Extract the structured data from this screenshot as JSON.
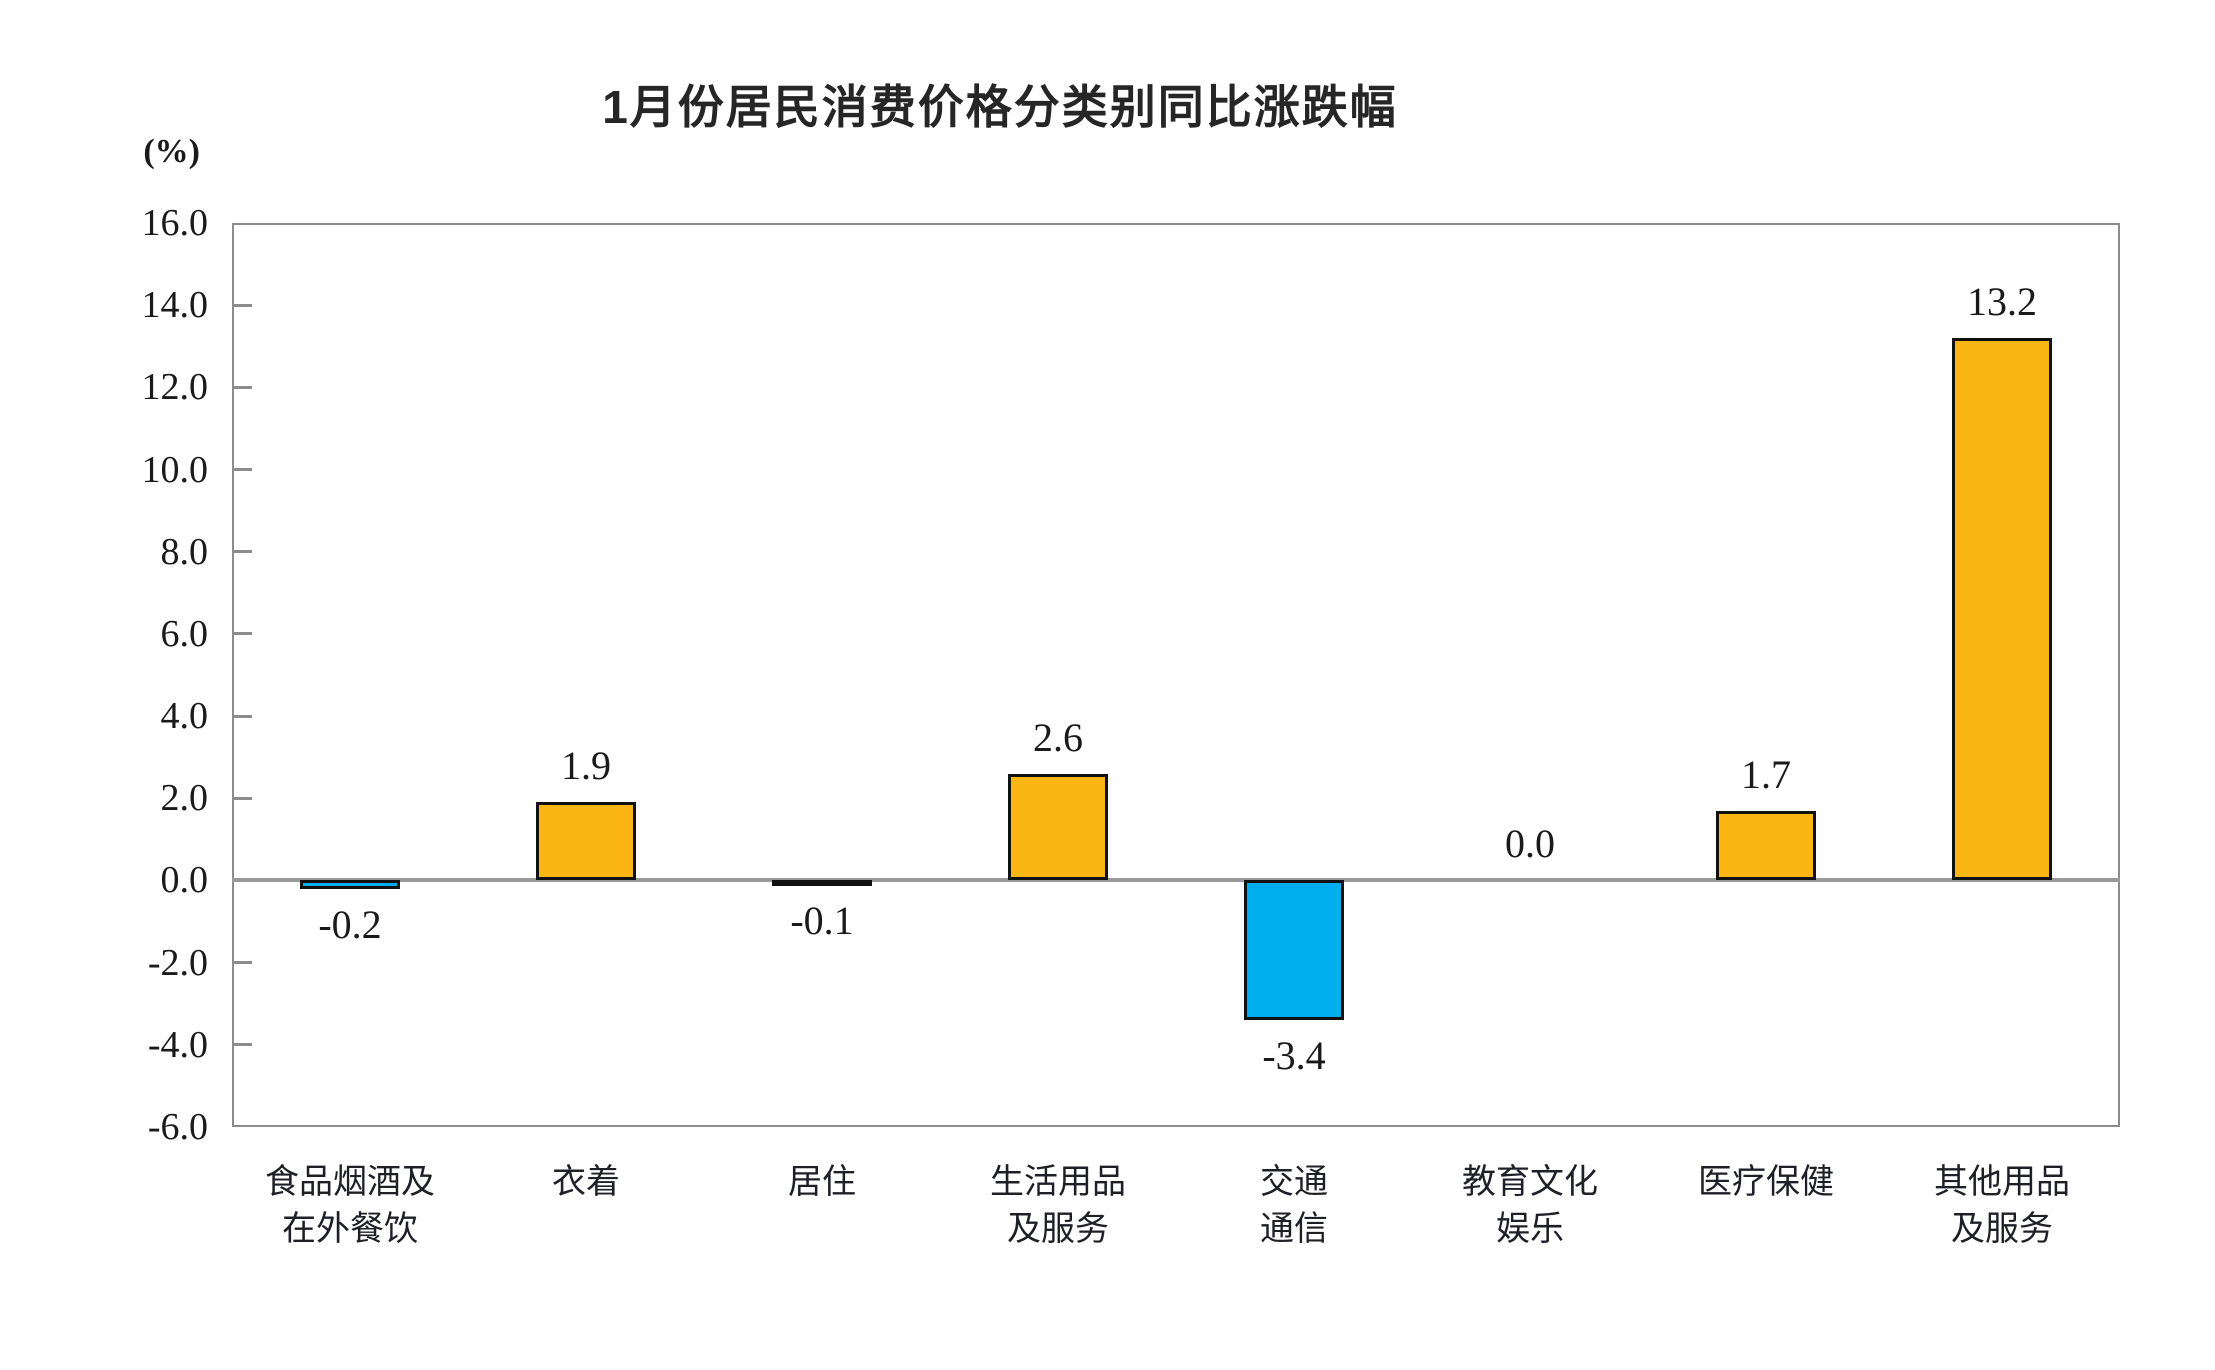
{
  "page": {
    "background": "#ffffff"
  },
  "chart_data": {
    "type": "bar",
    "title": "1月份居民消费价格分类别同比涨跌幅",
    "unit_label": "(%)",
    "categories": [
      "食品烟酒及\n在外餐饮",
      "衣着",
      "居住",
      "生活用品\n及服务",
      "交通\n通信",
      "教育文化\n娱乐",
      "医疗保健",
      "其他用品\n及服务"
    ],
    "values": [
      -0.2,
      1.9,
      -0.1,
      2.6,
      -3.4,
      0.0,
      1.7,
      13.2
    ],
    "value_labels": [
      "-0.2",
      "1.9",
      "-0.1",
      "2.6",
      "-3.4",
      "0.0",
      "1.7",
      "13.2"
    ],
    "bar_colors": [
      "#00AEEF",
      "#FBB615",
      "#00AEEF",
      "#FBB615",
      "#00AEEF",
      "#FBB615",
      "#FBB615",
      "#FBB615"
    ],
    "ylim": [
      -6.0,
      16.0
    ],
    "ytick_step": 2.0,
    "ytick_labels": [
      "16.0",
      "14.0",
      "12.0",
      "10.0",
      "8.0",
      "6.0",
      "4.0",
      "2.0",
      "0.0",
      "-2.0",
      "-4.0",
      "-6.0"
    ],
    "xlabel": "",
    "ylabel": "(%)",
    "grid": false,
    "legend": "none",
    "colors": {
      "positive_bar": "#FBB615",
      "negative_bar": "#00AEEF",
      "bar_border": "#111111",
      "axis_frame": "#8C8C8C",
      "zero_line": "#9A9A9A",
      "text": "#1A1A1A"
    }
  }
}
